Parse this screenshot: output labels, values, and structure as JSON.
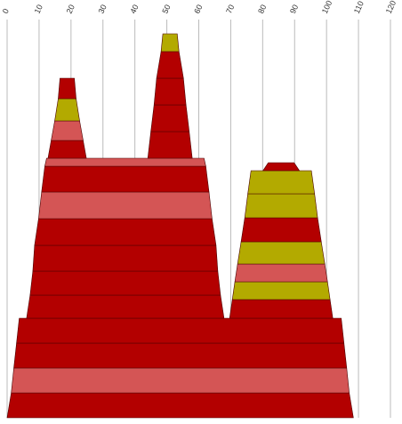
{
  "chart_data": {
    "type": "pyramid",
    "xlim": [
      0,
      120
    ],
    "xticks": [
      0,
      10,
      20,
      30,
      40,
      50,
      60,
      70,
      80,
      90,
      100,
      110,
      120
    ],
    "grid": true,
    "towers": [
      {
        "center": 54.2,
        "levels": [
          {
            "bottom": 108.4,
            "top": 105.8,
            "color": "#b30000"
          },
          {
            "bottom": 105.8,
            "top": 104.2,
            "color": "#d45555"
          },
          {
            "bottom": 104.2,
            "top": 102.5,
            "color": "#b30000"
          },
          {
            "bottom": 102.5,
            "top": 100.8,
            "color": "#b30000"
          }
        ]
      },
      {
        "center": 37.0,
        "levels": [
          {
            "bottom": 61.8,
            "top": 59.6,
            "color": "#b30000"
          },
          {
            "bottom": 59.6,
            "top": 57.9,
            "color": "#b30000"
          },
          {
            "bottom": 57.9,
            "top": 56.8,
            "color": "#b30000"
          },
          {
            "bottom": 56.8,
            "top": 54.3,
            "color": "#b30000"
          },
          {
            "bottom": 54.3,
            "top": 52.4,
            "color": "#d45555"
          },
          {
            "bottom": 52.4,
            "top": 50.4,
            "color": "#b30000"
          },
          {
            "bottom": 50.4,
            "top": 49.3,
            "color": "#d45555"
          }
        ]
      },
      {
        "center": 85.8,
        "levels": [
          {
            "bottom": 32.3,
            "top": 30.6,
            "color": "#b30000"
          },
          {
            "bottom": 30.6,
            "top": 29.0,
            "color": "#b3aa00"
          },
          {
            "bottom": 29.0,
            "top": 27.3,
            "color": "#d45555"
          },
          {
            "bottom": 27.3,
            "top": 25.1,
            "color": "#b3aa00"
          },
          {
            "bottom": 25.1,
            "top": 22.8,
            "color": "#b30000"
          },
          {
            "bottom": 22.8,
            "top": 20.9,
            "color": "#b3aa00"
          },
          {
            "bottom": 20.9,
            "top": 18.9,
            "color": "#b3aa00"
          },
          {
            "bottom": 11.4,
            "top": 8.1,
            "color": "#b30000"
          }
        ]
      },
      {
        "center": 18.8,
        "levels": [
          {
            "bottom": 12.0,
            "top": 10.0,
            "color": "#b30000"
          },
          {
            "bottom": 10.0,
            "top": 7.8,
            "color": "#d45555"
          },
          {
            "bottom": 7.8,
            "top": 5.6,
            "color": "#b3aa00"
          },
          {
            "bottom": 5.6,
            "top": 4.5,
            "color": "#b30000"
          }
        ]
      },
      {
        "center": 51.0,
        "levels": [
          {
            "bottom": 13.9,
            "top": 12.0,
            "color": "#b30000"
          },
          {
            "bottom": 12.0,
            "top": 10.0,
            "color": "#b30000"
          },
          {
            "bottom": 10.0,
            "top": 8.4,
            "color": "#b30000"
          },
          {
            "bottom": 8.4,
            "top": 5.6,
            "color": "#b30000"
          },
          {
            "bottom": 5.6,
            "top": 4.5,
            "color": "#b3aa00"
          }
        ]
      }
    ]
  }
}
